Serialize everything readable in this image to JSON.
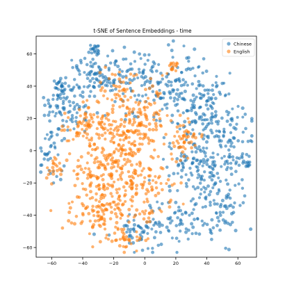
{
  "chart_data": {
    "type": "scatter",
    "title": "t-SNE of Sentence Embeddings - time",
    "xlabel": "",
    "ylabel": "",
    "xlim": [
      -70,
      72
    ],
    "ylim": [
      -66,
      71
    ],
    "xticks": [
      -60,
      -40,
      -20,
      0,
      20,
      40,
      60
    ],
    "yticks": [
      -60,
      -40,
      -20,
      0,
      20,
      40,
      60
    ],
    "grid": false,
    "legend_position": "top-right",
    "series": [
      {
        "name": "Chinese",
        "color": "#1f77b4",
        "alpha": 0.6,
        "clusters": [
          {
            "cx": -50,
            "cy": 30,
            "sx": 7,
            "sy": 9,
            "n": 90
          },
          {
            "cx": -30,
            "cy": 48,
            "sx": 8,
            "sy": 7,
            "n": 70
          },
          {
            "cx": -10,
            "cy": 45,
            "sx": 10,
            "sy": 10,
            "n": 70
          },
          {
            "cx": 15,
            "cy": 42,
            "sx": 10,
            "sy": 10,
            "n": 90
          },
          {
            "cx": 35,
            "cy": 30,
            "sx": 10,
            "sy": 10,
            "n": 100
          },
          {
            "cx": 50,
            "cy": 10,
            "sx": 9,
            "sy": 12,
            "n": 90
          },
          {
            "cx": 35,
            "cy": -10,
            "sx": 12,
            "sy": 12,
            "n": 100
          },
          {
            "cx": 45,
            "cy": -35,
            "sx": 10,
            "sy": 10,
            "n": 70
          },
          {
            "cx": 20,
            "cy": -45,
            "sx": 10,
            "sy": 8,
            "n": 60
          },
          {
            "cx": -5,
            "cy": -50,
            "sx": 10,
            "sy": 6,
            "n": 50
          },
          {
            "cx": -60,
            "cy": 0,
            "sx": 5,
            "sy": 10,
            "n": 40
          },
          {
            "cx": -55,
            "cy": 40,
            "sx": 2,
            "sy": 2,
            "n": 18
          },
          {
            "cx": -33,
            "cy": 63,
            "sx": 2,
            "sy": 1.5,
            "n": 18
          },
          {
            "cx": 65,
            "cy": -8,
            "sx": 2,
            "sy": 2,
            "n": 12
          },
          {
            "cx": 40,
            "cy": 2,
            "sx": 14,
            "sy": 18,
            "n": 60
          }
        ]
      },
      {
        "name": "English",
        "color": "#ff7f0e",
        "alpha": 0.6,
        "clusters": [
          {
            "cx": -35,
            "cy": 15,
            "sx": 8,
            "sy": 7,
            "n": 80
          },
          {
            "cx": -15,
            "cy": 10,
            "sx": 10,
            "sy": 12,
            "n": 120
          },
          {
            "cx": -25,
            "cy": -15,
            "sx": 12,
            "sy": 12,
            "n": 150
          },
          {
            "cx": -5,
            "cy": -25,
            "sx": 12,
            "sy": 12,
            "n": 120
          },
          {
            "cx": -30,
            "cy": -40,
            "sx": 9,
            "sy": 7,
            "n": 80
          },
          {
            "cx": 0,
            "cy": 20,
            "sx": 8,
            "sy": 10,
            "n": 80
          },
          {
            "cx": 25,
            "cy": 8,
            "sx": 6,
            "sy": 6,
            "n": 50
          },
          {
            "cx": -20,
            "cy": 40,
            "sx": 8,
            "sy": 6,
            "n": 30
          },
          {
            "cx": -58,
            "cy": -10,
            "sx": 3,
            "sy": 4,
            "n": 20
          },
          {
            "cx": 18,
            "cy": 52,
            "sx": 3,
            "sy": 3,
            "n": 15
          },
          {
            "cx": -10,
            "cy": -55,
            "sx": 6,
            "sy": 4,
            "n": 30
          }
        ]
      }
    ]
  }
}
